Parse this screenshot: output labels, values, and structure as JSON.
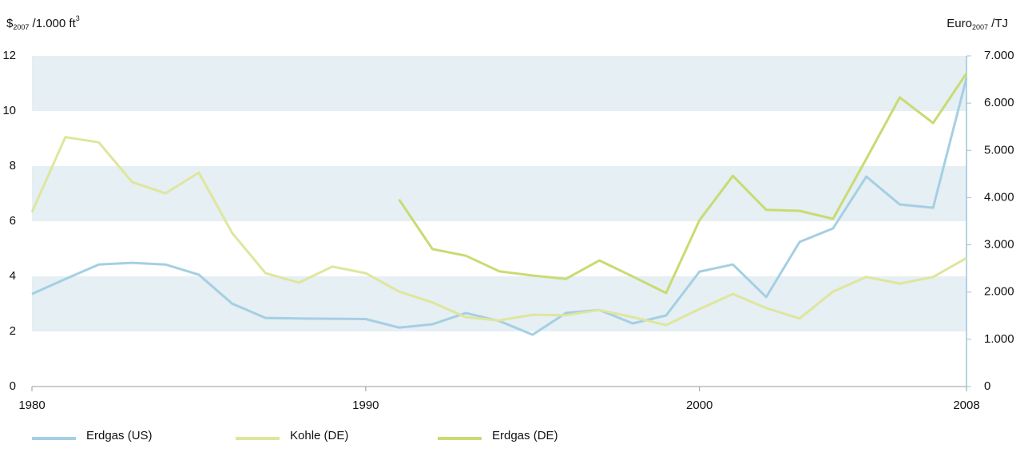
{
  "chart_data": {
    "type": "line",
    "y_label": [
      "$",
      "2007",
      " /1.000 ft",
      "3"
    ],
    "y2_label": [
      "Euro",
      "2007",
      " /TJ"
    ],
    "x": [
      1980,
      1981,
      1982,
      1983,
      1984,
      1985,
      1986,
      1987,
      1988,
      1989,
      1990,
      1991,
      1992,
      1993,
      1994,
      1995,
      1996,
      1997,
      1998,
      1999,
      2000,
      2001,
      2002,
      2003,
      2004,
      2005,
      2006,
      2007,
      2008
    ],
    "series": [
      {
        "name": "Erdgas (US)",
        "color": "#a5cfe3",
        "values": [
          3.36,
          3.9,
          4.43,
          4.49,
          4.43,
          4.06,
          3.01,
          2.49,
          2.47,
          2.46,
          2.45,
          2.14,
          2.26,
          2.67,
          2.38,
          1.88,
          2.67,
          2.78,
          2.29,
          2.58,
          4.17,
          4.43,
          3.25,
          5.25,
          5.74,
          7.62,
          6.61,
          6.49,
          11.2
        ]
      },
      {
        "name": "Kohle (DE)",
        "color": "#dfe69c",
        "axis": "y2",
        "values": [
          3690,
          5280,
          5170,
          4330,
          4090,
          4530,
          3250,
          2400,
          2200,
          2540,
          2400,
          2010,
          1780,
          1470,
          1400,
          1520,
          1510,
          1620,
          1470,
          1300,
          1640,
          1960,
          1660,
          1440,
          2010,
          2320,
          2180,
          2320,
          2720
        ]
      },
      {
        "name": "Erdgas (DE)",
        "color": "#c9db72",
        "axis": "y2",
        "values": [
          null,
          null,
          null,
          null,
          null,
          null,
          null,
          null,
          null,
          null,
          null,
          3960,
          2910,
          2770,
          2440,
          2350,
          2280,
          2670,
          2330,
          1980,
          3520,
          4460,
          3740,
          3720,
          3550,
          4820,
          6120,
          5580,
          6630
        ]
      }
    ],
    "xlim": [
      1980,
      2008
    ],
    "xticks": [
      1980,
      1990,
      2000,
      2008
    ],
    "ylim": [
      0,
      12
    ],
    "yticks": [
      0,
      2,
      4,
      6,
      8,
      10,
      12
    ],
    "y2lim": [
      0,
      7000
    ],
    "y2ticks": [
      0,
      {
        "value": 1000,
        "label": "1.000"
      },
      {
        "value": 2000,
        "label": "2.000"
      },
      {
        "value": 3000,
        "label": "3.000"
      },
      {
        "value": 4000,
        "label": "4.000"
      },
      {
        "value": 5000,
        "label": "5.000"
      },
      {
        "value": 6000,
        "label": "6.000"
      },
      {
        "value": 7000,
        "label": "7.000"
      }
    ],
    "grid": "bands",
    "band_color": "#e5eff4",
    "legend": "bottom-left"
  }
}
